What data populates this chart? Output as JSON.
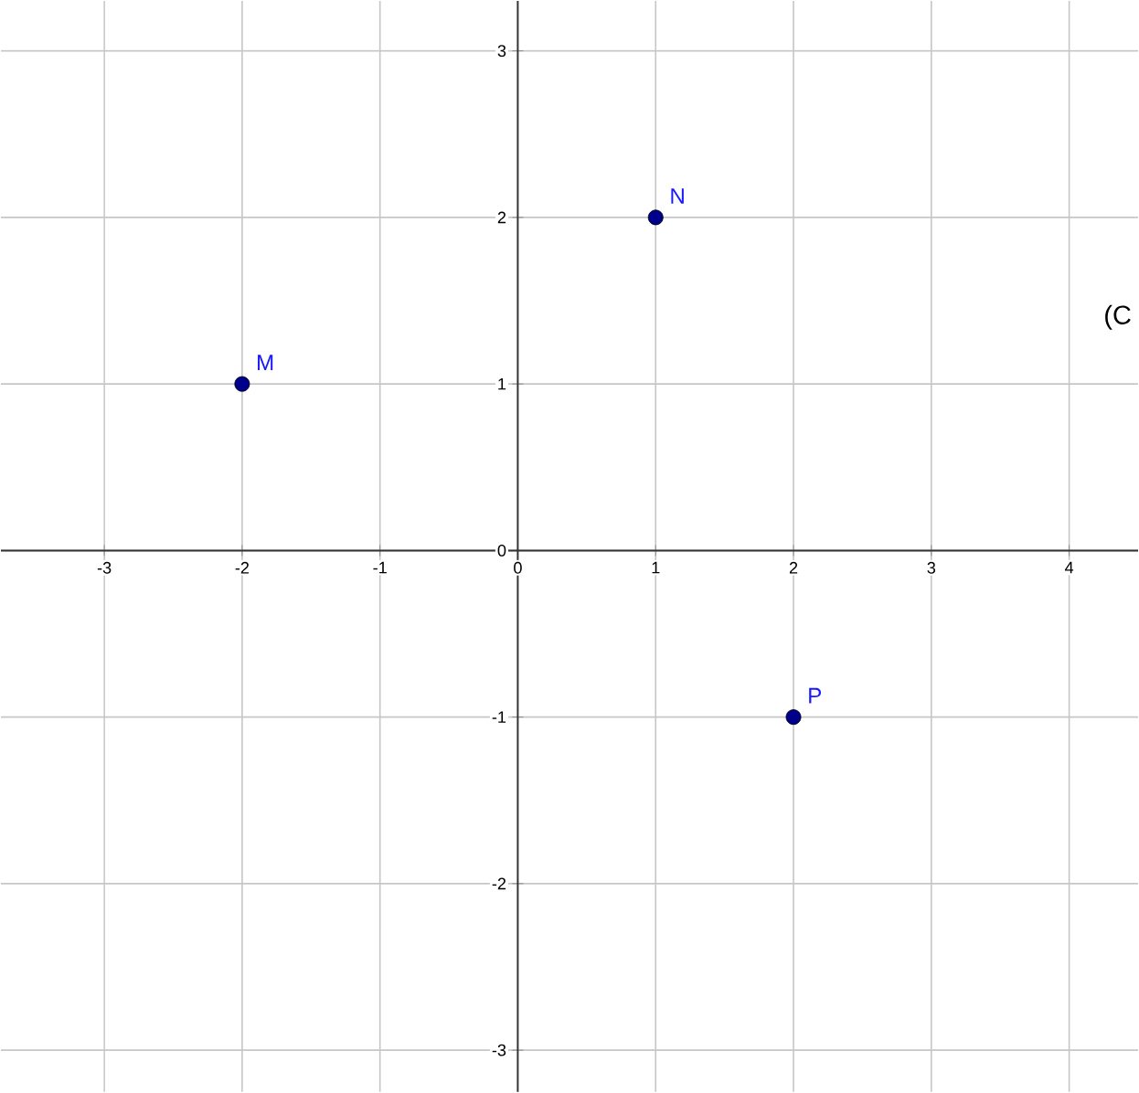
{
  "chart_data": {
    "type": "scatter",
    "x": [
      -2,
      1,
      2
    ],
    "series": [
      {
        "color": "#00008b",
        "values": [
          1,
          2,
          -1
        ]
      }
    ],
    "annotations": [
      {
        "text": "M",
        "x": -2,
        "y": 1
      },
      {
        "text": "N",
        "x": 1,
        "y": 2
      },
      {
        "text": "P",
        "x": 2,
        "y": -1
      },
      "(C"
    ],
    "xlim": [
      -3.75,
      4.5
    ],
    "ylim": [
      -3.25,
      3.3
    ],
    "xticks": [
      -3,
      -2,
      -1,
      0,
      1,
      2,
      3,
      4
    ],
    "yticks": [
      -3,
      -2,
      -1,
      0,
      1,
      2,
      3
    ],
    "grid": true,
    "marker": "circle"
  }
}
